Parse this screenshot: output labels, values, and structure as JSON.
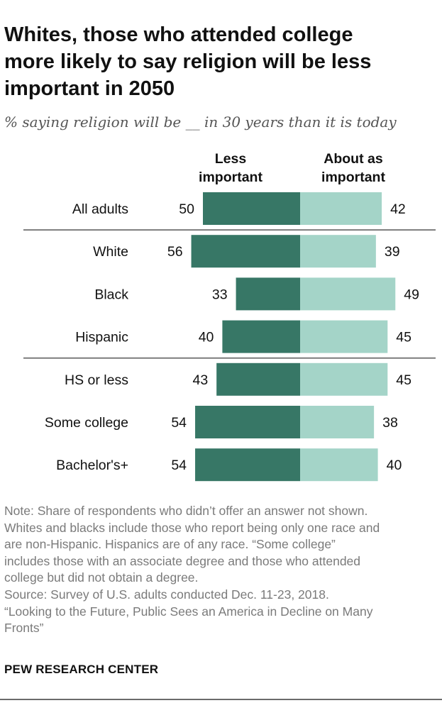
{
  "title_lines": [
    "Whites, those who attended college",
    "more likely to say religion will be less",
    "important in 2050"
  ],
  "subtitle": "% saying religion will be __ in 30 years than it is today",
  "colors": {
    "less": "#377766",
    "about": "#a4d4c8",
    "rule": "#7c7c7c",
    "text": "#111111",
    "note": "#7a7a7a"
  },
  "chart_data": {
    "type": "bar",
    "orientation": "horizontal-diverging",
    "title": "Whites, those who attended college more likely to say religion will be less important in 2050",
    "categories": [
      "All adults",
      "White",
      "Black",
      "Hispanic",
      "HS or less",
      "Some college",
      "Bachelor's+"
    ],
    "groups": [
      [
        "All adults"
      ],
      [
        "White",
        "Black",
        "Hispanic"
      ],
      [
        "HS or less",
        "Some college",
        "Bachelor's+"
      ]
    ],
    "series": [
      {
        "name": "Less important",
        "header_lines": [
          "Less",
          "important"
        ],
        "values": [
          50,
          56,
          33,
          40,
          43,
          54,
          54
        ]
      },
      {
        "name": "About as important",
        "header_lines": [
          "About as",
          "important"
        ],
        "values": [
          42,
          39,
          49,
          45,
          45,
          38,
          40
        ]
      }
    ],
    "xlabel": "",
    "ylabel": "",
    "xlim": [
      0,
      60
    ]
  },
  "note_lines": [
    "Note: Share of respondents who didn’t offer an answer not shown.",
    "Whites and blacks include those who report being only one race and",
    "are non-Hispanic. Hispanics are of any race. “Some college”",
    "includes those with an associate degree and those who attended",
    "college but did not obtain a degree.",
    "Source: Survey of U.S. adults conducted Dec. 11-23, 2018.",
    "“Looking to the Future, Public Sees an America in Decline on Many",
    "Fronts”"
  ],
  "footer": "PEW RESEARCH CENTER"
}
